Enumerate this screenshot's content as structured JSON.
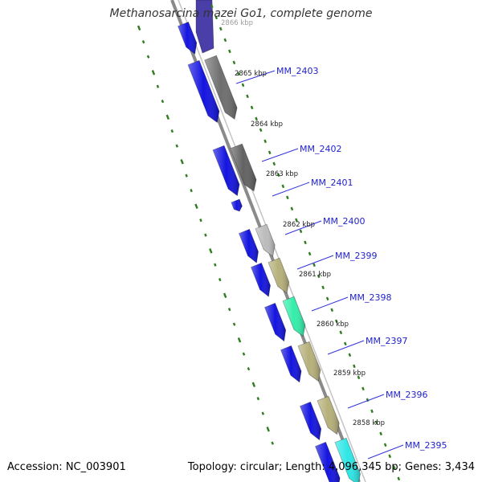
{
  "title": "Methanosarcina mazei Go1, complete genome",
  "accession_text": "Accession: NC_003901",
  "summary_text": "Topology: circular; Length: 4,096,345 bp; Genes: 3,434",
  "colors": {
    "backbone": "#8a8a8a",
    "tick": "#2e7d1e",
    "gene_label": "#2222cc",
    "leader_line": "#3333dd",
    "coord_label": "#222222",
    "cds_forward": "#1414e0"
  },
  "coordinate_ticks": [
    {
      "label": "2866 kbp",
      "faded": true
    },
    {
      "label": "2865 kbp"
    },
    {
      "label": "2864 kbp"
    },
    {
      "label": "2863 kbp"
    },
    {
      "label": "2862 kbp"
    },
    {
      "label": "2861 kbp"
    },
    {
      "label": "2860 kbp"
    },
    {
      "label": "2859 kbp"
    },
    {
      "label": "2858 kbp"
    }
  ],
  "genes": [
    {
      "name": "MM_2403",
      "fill": "#6e6e6e"
    },
    {
      "name": "MM_2402",
      "fill": "#626262"
    },
    {
      "name": "MM_2401"
    },
    {
      "name": "MM_2400",
      "fill": "#bcbcbc"
    },
    {
      "name": "MM_2399",
      "fill": "#b6b07a"
    },
    {
      "name": "MM_2398",
      "fill": "#33eeaa"
    },
    {
      "name": "MM_2397",
      "fill": "#b6b07a"
    },
    {
      "name": "MM_2396",
      "fill": "#b6b07a"
    },
    {
      "name": "MM_2395",
      "fill": "#2ee6e6"
    }
  ]
}
